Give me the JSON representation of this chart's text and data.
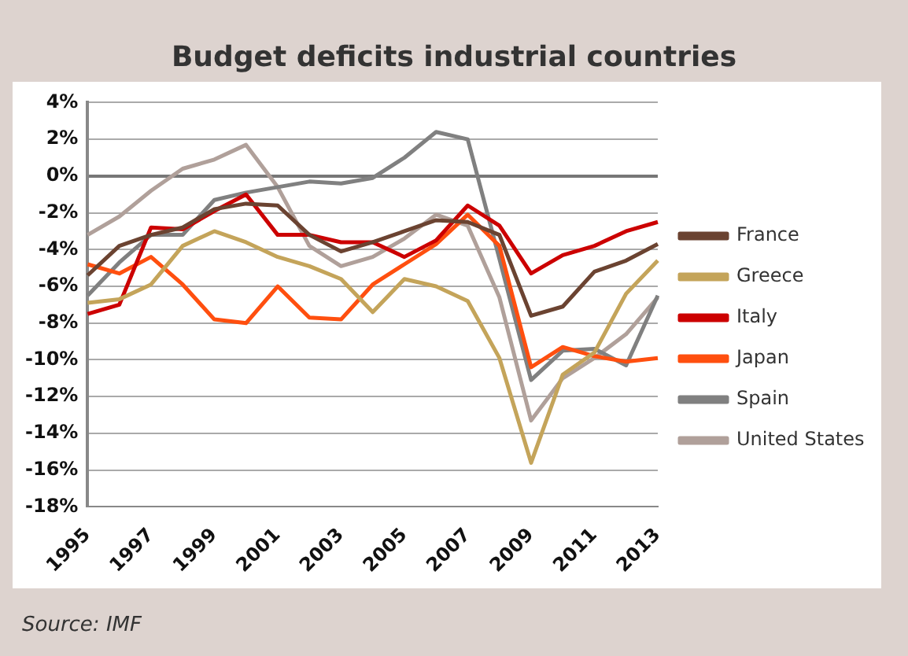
{
  "chart_data": {
    "type": "line",
    "title": "Budget deficits industrial countries",
    "annotations": [
      "Source: IMF"
    ],
    "categories": [
      "1995",
      null,
      "1997",
      null,
      "1999",
      null,
      "2001",
      null,
      "2003",
      null,
      "2005",
      null,
      "2007",
      null,
      "2009",
      null,
      "2011",
      null,
      "2013"
    ],
    "series": [
      {
        "name": "France",
        "color": "#6b4331",
        "values": [
          -5.4,
          -3.8,
          -3.2,
          -2.8,
          -1.8,
          -1.5,
          -1.6,
          -3.2,
          -4.1,
          -3.6,
          -3.0,
          -2.4,
          -2.5,
          -3.2,
          -7.6,
          -7.1,
          -5.2,
          -4.6,
          -3.7
        ]
      },
      {
        "name": "Greece",
        "color": "#c4a45a",
        "values": [
          -6.9,
          -6.7,
          -5.9,
          -3.8,
          -3.0,
          -3.6,
          -4.4,
          -4.9,
          -5.6,
          -7.4,
          -5.6,
          -6.0,
          -6.8,
          -9.9,
          -15.6,
          -10.8,
          -9.6,
          -6.4,
          -4.6
        ]
      },
      {
        "name": "Italy",
        "color": "#cc0000",
        "values": [
          -7.5,
          -7.0,
          -2.8,
          -2.9,
          -1.9,
          -1.0,
          -3.2,
          -3.2,
          -3.6,
          -3.6,
          -4.4,
          -3.5,
          -1.6,
          -2.7,
          -5.3,
          -4.3,
          -3.8,
          -3.0,
          -2.5
        ]
      },
      {
        "name": "Japan",
        "color": "#ff4f0f",
        "values": [
          -4.8,
          -5.3,
          -4.4,
          -5.9,
          -7.8,
          -8.0,
          -6.0,
          -7.7,
          -7.8,
          -5.9,
          -4.8,
          -3.7,
          -2.1,
          -3.8,
          -10.4,
          -9.3,
          -9.8,
          -10.1,
          -9.9
        ]
      },
      {
        "name": "Spain",
        "color": "#808080",
        "values": [
          -6.5,
          -4.7,
          -3.2,
          -3.2,
          -1.3,
          -0.9,
          -0.6,
          -0.3,
          -0.4,
          -0.1,
          1.0,
          2.4,
          2.0,
          -4.5,
          -11.1,
          -9.5,
          -9.4,
          -10.3,
          -6.5
        ]
      },
      {
        "name": "United States",
        "color": "#b0a09a",
        "values": [
          -3.2,
          -2.2,
          -0.8,
          0.4,
          0.9,
          1.7,
          -0.6,
          -3.8,
          -4.9,
          -4.4,
          -3.4,
          -2.1,
          -2.7,
          -6.6,
          -13.3,
          -11.0,
          -9.9,
          -8.6,
          -6.6
        ]
      }
    ],
    "ylim": [
      -18,
      4
    ],
    "yticks": [
      {
        "value": 4,
        "label": "4%"
      },
      {
        "value": 2,
        "label": "2%"
      },
      {
        "value": 0,
        "label": "0%"
      },
      {
        "value": -2,
        "label": "-2%"
      },
      {
        "value": -4,
        "label": "-4%"
      },
      {
        "value": -6,
        "label": "-6%"
      },
      {
        "value": -8,
        "label": "-8%"
      },
      {
        "value": -10,
        "label": "-10%"
      },
      {
        "value": -12,
        "label": "-12%"
      },
      {
        "value": -14,
        "label": "-14%"
      },
      {
        "value": -16,
        "label": "-16%"
      },
      {
        "value": -18,
        "label": "-18%"
      }
    ],
    "grid": "y",
    "legend": "right",
    "marker": "none",
    "line_style": "solid"
  }
}
